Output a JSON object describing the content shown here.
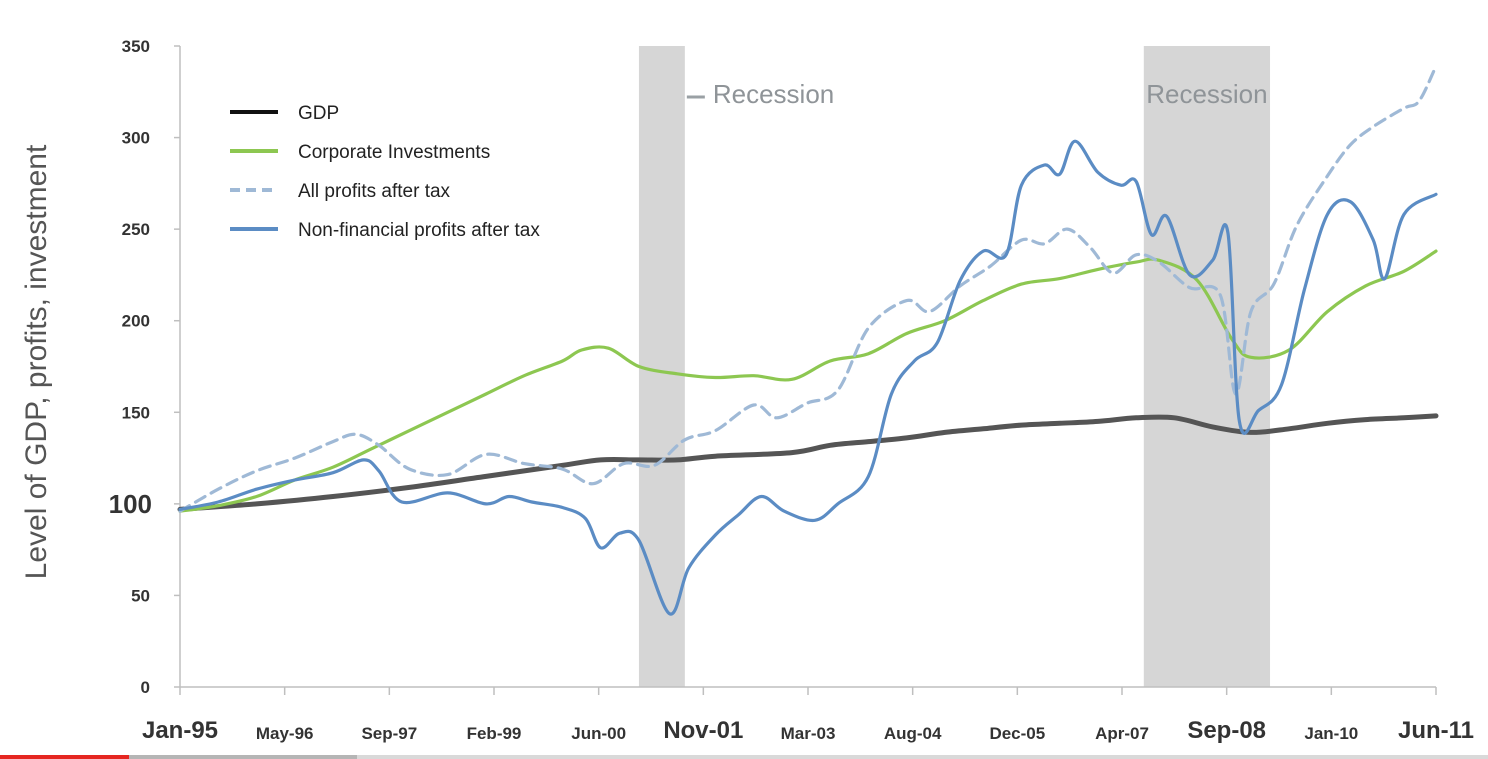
{
  "chart_data": {
    "type": "line",
    "title": "",
    "xlabel": "",
    "ylabel": "Level of GDP, profits, investment",
    "ylim": [
      0,
      350
    ],
    "yticks": [
      0,
      50,
      100,
      150,
      200,
      250,
      300,
      350
    ],
    "x_ticks": [
      {
        "label": "Jan-95",
        "bold": true
      },
      {
        "label": "May-96",
        "bold": false
      },
      {
        "label": "Sep-97",
        "bold": false
      },
      {
        "label": "Feb-99",
        "bold": false
      },
      {
        "label": "Jun-00",
        "bold": false
      },
      {
        "label": "Nov-01",
        "bold": true
      },
      {
        "label": "Mar-03",
        "bold": false
      },
      {
        "label": "Aug-04",
        "bold": false
      },
      {
        "label": "Dec-05",
        "bold": false
      },
      {
        "label": "Apr-07",
        "bold": false
      },
      {
        "label": "Sep-08",
        "bold": true
      },
      {
        "label": "Jan-10",
        "bold": false
      },
      {
        "label": "Jun-11",
        "bold": true
      }
    ],
    "xlim": [
      1995.0,
      2011.42
    ],
    "recessions": [
      {
        "label": "Recession",
        "start": 2001.0,
        "end": 2001.6
      },
      {
        "label": "Recession",
        "start": 2007.6,
        "end": 2009.25
      }
    ],
    "legend_position": "top-left",
    "series": [
      {
        "name": "GDP",
        "color": "#555555",
        "dash": false,
        "points": [
          [
            1995.0,
            97
          ],
          [
            1996.0,
            100
          ],
          [
            1997.0,
            104
          ],
          [
            1998.0,
            109
          ],
          [
            1999.0,
            115
          ],
          [
            2000.0,
            121
          ],
          [
            2000.5,
            124
          ],
          [
            2001.0,
            124
          ],
          [
            2001.5,
            124
          ],
          [
            2002.0,
            126
          ],
          [
            2003.0,
            128
          ],
          [
            2003.5,
            132
          ],
          [
            2004.0,
            134
          ],
          [
            2004.5,
            136
          ],
          [
            2005.0,
            139
          ],
          [
            2005.5,
            141
          ],
          [
            2006.0,
            143
          ],
          [
            2006.5,
            144
          ],
          [
            2007.0,
            145
          ],
          [
            2007.5,
            147
          ],
          [
            2008.0,
            147
          ],
          [
            2008.5,
            142
          ],
          [
            2009.0,
            139
          ],
          [
            2009.5,
            141
          ],
          [
            2010.0,
            144
          ],
          [
            2010.5,
            146
          ],
          [
            2011.0,
            147
          ],
          [
            2011.42,
            148
          ]
        ]
      },
      {
        "name": "Corporate Investments",
        "color": "#8dc751",
        "dash": false,
        "points": [
          [
            1995.0,
            96
          ],
          [
            1995.5,
            99
          ],
          [
            1996.0,
            104
          ],
          [
            1996.5,
            113
          ],
          [
            1997.0,
            120
          ],
          [
            1997.5,
            130
          ],
          [
            1998.0,
            140
          ],
          [
            1998.5,
            150
          ],
          [
            1999.0,
            160
          ],
          [
            1999.5,
            170
          ],
          [
            2000.0,
            178
          ],
          [
            2000.25,
            184
          ],
          [
            2000.6,
            185
          ],
          [
            2001.0,
            175
          ],
          [
            2001.5,
            171
          ],
          [
            2002.0,
            169
          ],
          [
            2002.5,
            170
          ],
          [
            2003.0,
            168
          ],
          [
            2003.5,
            178
          ],
          [
            2004.0,
            182
          ],
          [
            2004.5,
            193
          ],
          [
            2005.0,
            200
          ],
          [
            2005.5,
            211
          ],
          [
            2006.0,
            220
          ],
          [
            2006.5,
            223
          ],
          [
            2007.0,
            228
          ],
          [
            2007.5,
            232
          ],
          [
            2007.8,
            233
          ],
          [
            2008.3,
            222
          ],
          [
            2008.75,
            190
          ],
          [
            2009.0,
            180
          ],
          [
            2009.5,
            184
          ],
          [
            2010.0,
            205
          ],
          [
            2010.5,
            219
          ],
          [
            2011.0,
            227
          ],
          [
            2011.42,
            238
          ]
        ]
      },
      {
        "name": "All profits after tax",
        "color": "#9fb9d6",
        "dash": true,
        "points": [
          [
            1995.0,
            96
          ],
          [
            1995.5,
            108
          ],
          [
            1996.0,
            118
          ],
          [
            1996.5,
            125
          ],
          [
            1997.0,
            134
          ],
          [
            1997.3,
            138
          ],
          [
            1997.6,
            132
          ],
          [
            1998.0,
            119
          ],
          [
            1998.5,
            116
          ],
          [
            1999.0,
            127
          ],
          [
            1999.5,
            122
          ],
          [
            2000.0,
            119
          ],
          [
            2000.4,
            111
          ],
          [
            2000.8,
            122
          ],
          [
            2001.2,
            121
          ],
          [
            2001.6,
            135
          ],
          [
            2002.0,
            140
          ],
          [
            2002.5,
            154
          ],
          [
            2002.8,
            147
          ],
          [
            2003.2,
            155
          ],
          [
            2003.6,
            162
          ],
          [
            2004.0,
            196
          ],
          [
            2004.5,
            211
          ],
          [
            2004.8,
            205
          ],
          [
            2005.2,
            219
          ],
          [
            2005.6,
            230
          ],
          [
            2006.0,
            244
          ],
          [
            2006.3,
            242
          ],
          [
            2006.6,
            250
          ],
          [
            2006.9,
            240
          ],
          [
            2007.2,
            226
          ],
          [
            2007.5,
            236
          ],
          [
            2007.8,
            232
          ],
          [
            2008.2,
            218
          ],
          [
            2008.6,
            214
          ],
          [
            2008.8,
            160
          ],
          [
            2009.0,
            205
          ],
          [
            2009.3,
            220
          ],
          [
            2009.6,
            252
          ],
          [
            2010.0,
            279
          ],
          [
            2010.3,
            296
          ],
          [
            2010.6,
            306
          ],
          [
            2011.0,
            316
          ],
          [
            2011.2,
            320
          ],
          [
            2011.42,
            339
          ]
        ]
      },
      {
        "name": "Non-financial profits after tax",
        "color": "#5b8cc4",
        "dash": false,
        "points": [
          [
            1995.0,
            97
          ],
          [
            1995.5,
            101
          ],
          [
            1996.0,
            108
          ],
          [
            1996.5,
            113
          ],
          [
            1997.0,
            117
          ],
          [
            1997.4,
            124
          ],
          [
            1997.6,
            118
          ],
          [
            1997.9,
            101
          ],
          [
            1998.5,
            106
          ],
          [
            1999.0,
            100
          ],
          [
            1999.3,
            104
          ],
          [
            1999.6,
            101
          ],
          [
            2000.0,
            98
          ],
          [
            2000.3,
            92
          ],
          [
            2000.5,
            76
          ],
          [
            2000.75,
            84
          ],
          [
            2001.0,
            80
          ],
          [
            2001.4,
            40
          ],
          [
            2001.65,
            65
          ],
          [
            2002.0,
            83
          ],
          [
            2002.3,
            94
          ],
          [
            2002.6,
            104
          ],
          [
            2002.9,
            96
          ],
          [
            2003.3,
            91
          ],
          [
            2003.6,
            100
          ],
          [
            2004.0,
            115
          ],
          [
            2004.3,
            160
          ],
          [
            2004.6,
            178
          ],
          [
            2004.9,
            188
          ],
          [
            2005.2,
            222
          ],
          [
            2005.5,
            238
          ],
          [
            2005.8,
            236
          ],
          [
            2006.0,
            274
          ],
          [
            2006.3,
            285
          ],
          [
            2006.5,
            280
          ],
          [
            2006.7,
            298
          ],
          [
            2007.0,
            281
          ],
          [
            2007.3,
            274
          ],
          [
            2007.5,
            276
          ],
          [
            2007.7,
            247
          ],
          [
            2007.9,
            257
          ],
          [
            2008.2,
            225
          ],
          [
            2008.5,
            233
          ],
          [
            2008.7,
            248
          ],
          [
            2008.85,
            145
          ],
          [
            2009.1,
            151
          ],
          [
            2009.4,
            165
          ],
          [
            2009.7,
            217
          ],
          [
            2010.0,
            258
          ],
          [
            2010.3,
            265
          ],
          [
            2010.6,
            244
          ],
          [
            2010.75,
            223
          ],
          [
            2011.0,
            258
          ],
          [
            2011.42,
            269
          ]
        ]
      }
    ]
  },
  "video": {
    "progress": 0.087,
    "buffered": 0.24
  }
}
